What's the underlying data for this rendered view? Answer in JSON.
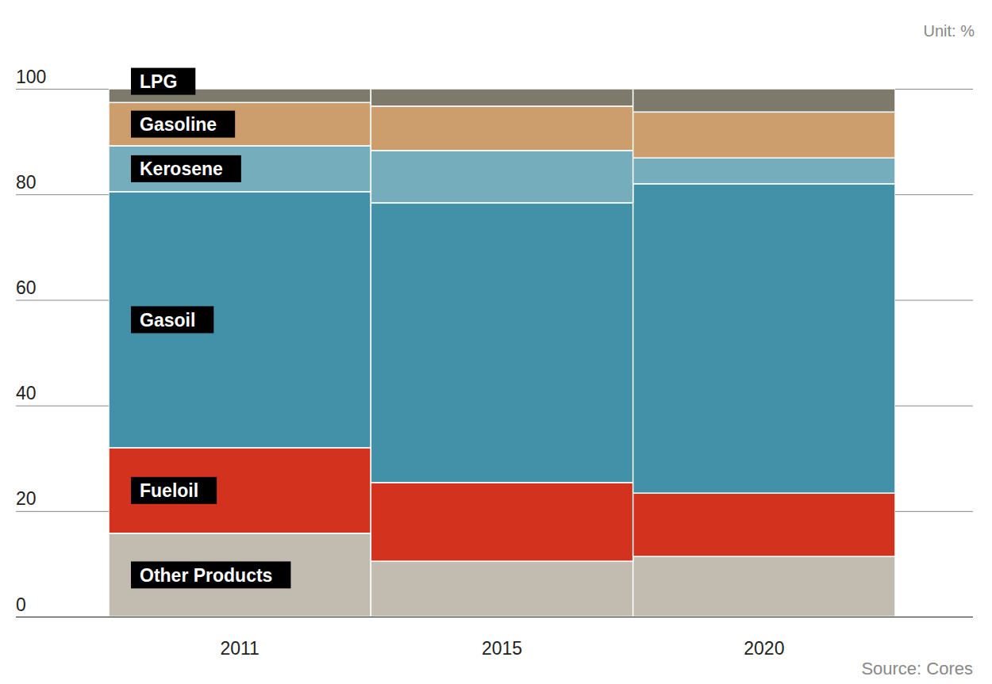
{
  "chart_data": {
    "type": "bar",
    "stacked": true,
    "grid": true,
    "unit_label": "Unit: %",
    "source": "Source: Cores",
    "categories": [
      "2011",
      "2015",
      "2020"
    ],
    "series": [
      {
        "name": "Other Products",
        "color": "#c2bbb0",
        "values": [
          15.8,
          10.5,
          11.4
        ]
      },
      {
        "name": "Fueloil",
        "color": "#d3321f",
        "values": [
          16.2,
          14.9,
          12.0
        ]
      },
      {
        "name": "Gasoil",
        "color": "#4390a9",
        "values": [
          48.5,
          53.0,
          58.6
        ]
      },
      {
        "name": "Kerosene",
        "color": "#76adbd",
        "values": [
          8.7,
          9.9,
          4.9
        ]
      },
      {
        "name": "Gasoline",
        "color": "#cc9e6e",
        "values": [
          8.2,
          8.4,
          8.7
        ]
      },
      {
        "name": "LPG",
        "color": "#7d7a6c",
        "values": [
          2.6,
          3.3,
          4.4
        ]
      }
    ],
    "ylim": [
      0,
      100
    ],
    "yticks": [
      0,
      20,
      40,
      60,
      80,
      100
    ]
  }
}
